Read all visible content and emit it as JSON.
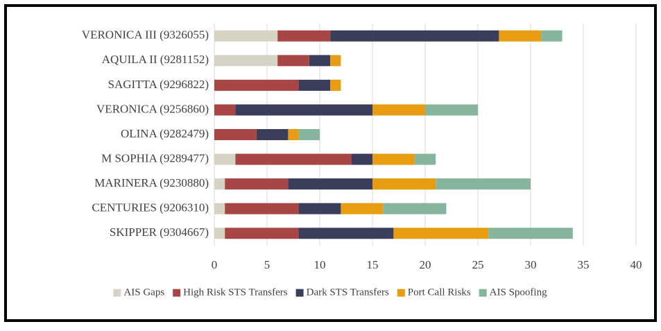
{
  "chart_data": {
    "type": "stacked_bar_horizontal",
    "categories": [
      "VERONICA III (9326055)",
      "AQUILA II (9281152)",
      "SAGITTA (9296822)",
      "VERONICA (9256860)",
      "OLINA (9282479)",
      "M SOPHIA (9289477)",
      "MARINERA (9230880)",
      "CENTURIES (9206310)",
      "SKIPPER (9304667)"
    ],
    "series": [
      {
        "name": "AIS Gaps",
        "color": "#d6d3c4",
        "values": [
          6,
          6,
          0,
          0,
          0,
          2,
          1,
          1,
          1
        ]
      },
      {
        "name": "High Risk STS Transfers",
        "color": "#a84545",
        "values": [
          5,
          3,
          8,
          2,
          4,
          11,
          6,
          7,
          7
        ]
      },
      {
        "name": "Dark STS Transfers",
        "color": "#3b3e5b",
        "values": [
          16,
          2,
          3,
          13,
          3,
          2,
          8,
          4,
          9
        ]
      },
      {
        "name": "Port Call Risks",
        "color": "#e89c12",
        "values": [
          4,
          1,
          1,
          5,
          1,
          4,
          6,
          4,
          9
        ]
      },
      {
        "name": "AIS Spoofing",
        "color": "#85b59d",
        "values": [
          2,
          0,
          0,
          5,
          2,
          2,
          9,
          6,
          8
        ]
      }
    ],
    "xlim": [
      0,
      40
    ],
    "xticks": [
      0,
      5,
      10,
      15,
      20,
      25,
      30,
      35,
      40
    ],
    "grid": true,
    "legend": "bottom"
  }
}
